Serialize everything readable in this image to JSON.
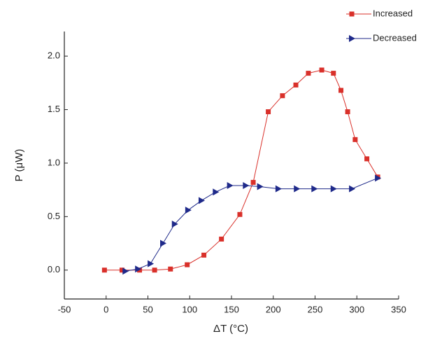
{
  "chart_data": {
    "type": "line",
    "x_label": "ΔT (°C)",
    "y_label": "P (μW)",
    "xlim": [
      -50,
      350
    ],
    "xticks": [
      -50,
      0,
      50,
      100,
      150,
      200,
      250,
      300,
      350
    ],
    "ylim": [
      -0.27,
      2.23
    ],
    "yticks": [
      {
        "value": 0,
        "label": "0.0"
      },
      0.5,
      {
        "value": 1,
        "label": "1.0"
      },
      1.5,
      {
        "value": 2,
        "label": "2.0"
      }
    ],
    "legend": "top-right",
    "series": [
      {
        "name": "Increased",
        "color": "#d9302a",
        "marker": "square",
        "x": [
          -2,
          19,
          40,
          58,
          77,
          97,
          117,
          138,
          160,
          176,
          194,
          211,
          227,
          242,
          258,
          272,
          281,
          289,
          298,
          312,
          325
        ],
        "values": [
          0,
          0,
          0,
          0,
          0.01,
          0.05,
          0.14,
          0.29,
          0.52,
          0.82,
          1.48,
          1.63,
          1.73,
          1.84,
          1.87,
          1.84,
          1.68,
          1.48,
          1.22,
          1.04,
          0.87
        ]
      },
      {
        "name": "Decreased",
        "color": "#1f2a8a",
        "marker": "triangle",
        "x": [
          23,
          38,
          53,
          68,
          82,
          98,
          114,
          131,
          148,
          167,
          184,
          206,
          228,
          249,
          272,
          294,
          325
        ],
        "values": [
          -0.01,
          0.01,
          0.06,
          0.25,
          0.43,
          0.56,
          0.65,
          0.73,
          0.79,
          0.79,
          0.78,
          0.76,
          0.76,
          0.76,
          0.76,
          0.76,
          0.86
        ]
      }
    ]
  }
}
